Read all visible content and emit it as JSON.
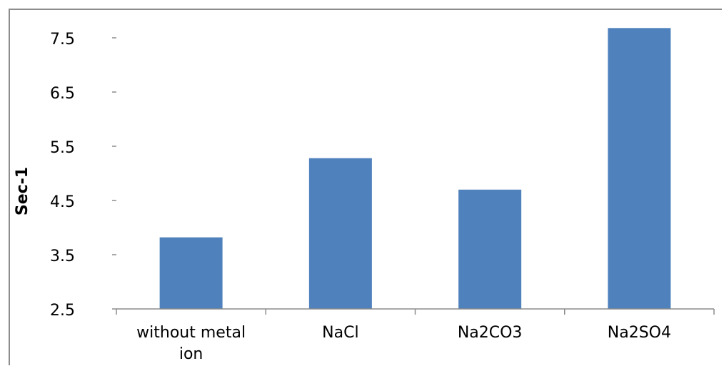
{
  "chart_data": {
    "type": "bar",
    "title": "",
    "xlabel": "",
    "ylabel": "Sec-1",
    "ylim": [
      2.5,
      7.5
    ],
    "yticks": [
      "2.5",
      "3.5",
      "4.5",
      "5.5",
      "6.5",
      "7.5"
    ],
    "grid": false,
    "legend": "none",
    "bar_color": "#4f81bd",
    "categories": [
      "without metal ion",
      "NaCl",
      "Na2CO3",
      "Na2SO4"
    ],
    "category_lines": [
      [
        "without metal",
        "ion"
      ],
      [
        "NaCl"
      ],
      [
        "Na2CO3"
      ],
      [
        "Na2SO4"
      ]
    ],
    "values": [
      3.82,
      5.28,
      4.7,
      7.68
    ]
  }
}
